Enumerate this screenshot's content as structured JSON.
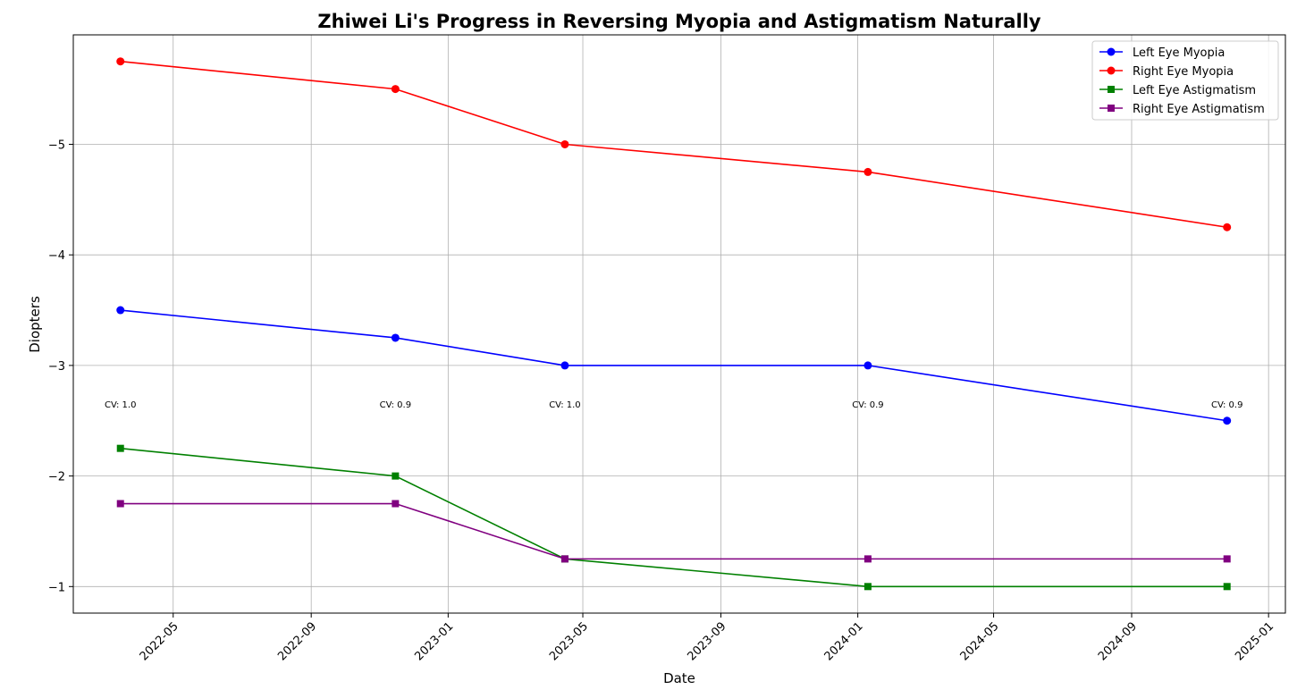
{
  "chart_data": {
    "type": "line",
    "title": "Zhiwei Li's Progress in Reversing Myopia and Astigmatism Naturally",
    "xlabel": "Date",
    "ylabel": "Diopters",
    "x_axis": {
      "kind": "date",
      "range": [
        "2022-02-01",
        "2025-01-16"
      ],
      "ticks": [
        "2022-05-01",
        "2022-09-01",
        "2023-01-01",
        "2023-05-01",
        "2023-09-01",
        "2024-01-01",
        "2024-05-01",
        "2024-09-01",
        "2025-01-01"
      ],
      "tick_labels": [
        "2022-05",
        "2022-09",
        "2023-01",
        "2023-05",
        "2023-09",
        "2024-01",
        "2024-05",
        "2024-09",
        "2025-01"
      ]
    },
    "y_axis": {
      "inverted": true,
      "range": [
        -0.76,
        -5.99
      ],
      "ticks": [
        -5,
        -4,
        -3,
        -2,
        -1
      ],
      "tick_labels": [
        "−5",
        "−4",
        "−3",
        "−2",
        "−1"
      ]
    },
    "grid": true,
    "legend_position": "top-right",
    "dates": [
      "2022-03-15",
      "2022-11-15",
      "2023-04-15",
      "2024-01-10",
      "2024-11-25"
    ],
    "series": [
      {
        "name": "Left Eye Myopia",
        "color": "#0000ff",
        "marker": "circle",
        "values": [
          -3.5,
          -3.25,
          -3.0,
          -3.0,
          -2.5
        ]
      },
      {
        "name": "Right Eye Myopia",
        "color": "#ff0000",
        "marker": "circle",
        "values": [
          -5.75,
          -5.5,
          -5.0,
          -4.75,
          -4.25
        ]
      },
      {
        "name": "Left Eye Astigmatism",
        "color": "#008000",
        "marker": "square",
        "values": [
          -2.25,
          -2.0,
          -1.25,
          -1.0,
          -1.0
        ]
      },
      {
        "name": "Right Eye Astigmatism",
        "color": "#800080",
        "marker": "square",
        "values": [
          -1.75,
          -1.75,
          -1.25,
          -1.25,
          -1.25
        ]
      }
    ],
    "annotations": [
      {
        "date": "2022-03-15",
        "y": -2.65,
        "text": "CV: 1.0"
      },
      {
        "date": "2022-11-15",
        "y": -2.65,
        "text": "CV: 0.9"
      },
      {
        "date": "2023-04-15",
        "y": -2.65,
        "text": "CV: 1.0"
      },
      {
        "date": "2024-01-10",
        "y": -2.65,
        "text": "CV: 0.9"
      },
      {
        "date": "2024-11-25",
        "y": -2.65,
        "text": "CV: 0.9"
      }
    ]
  }
}
